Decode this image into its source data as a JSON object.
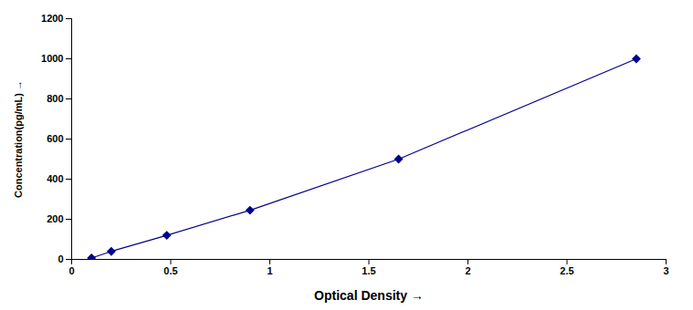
{
  "chart_data": {
    "type": "line",
    "x": [
      0.1,
      0.2,
      0.48,
      0.9,
      1.65,
      2.85
    ],
    "values": [
      7,
      40,
      120,
      245,
      500,
      1000
    ],
    "color": "#00008B",
    "marker": "diamond",
    "line_style": "solid",
    "xlabel": "Optical Density",
    "ylabel": "Concentration(pg/mL)",
    "xlim": [
      0,
      3.0
    ],
    "ylim": [
      0,
      1200
    ],
    "xticks": [
      0,
      0.5,
      1,
      1.5,
      2,
      2.5,
      3
    ],
    "yticks": [
      0,
      200,
      400,
      600,
      800,
      1000,
      1200
    ],
    "grid": false
  }
}
